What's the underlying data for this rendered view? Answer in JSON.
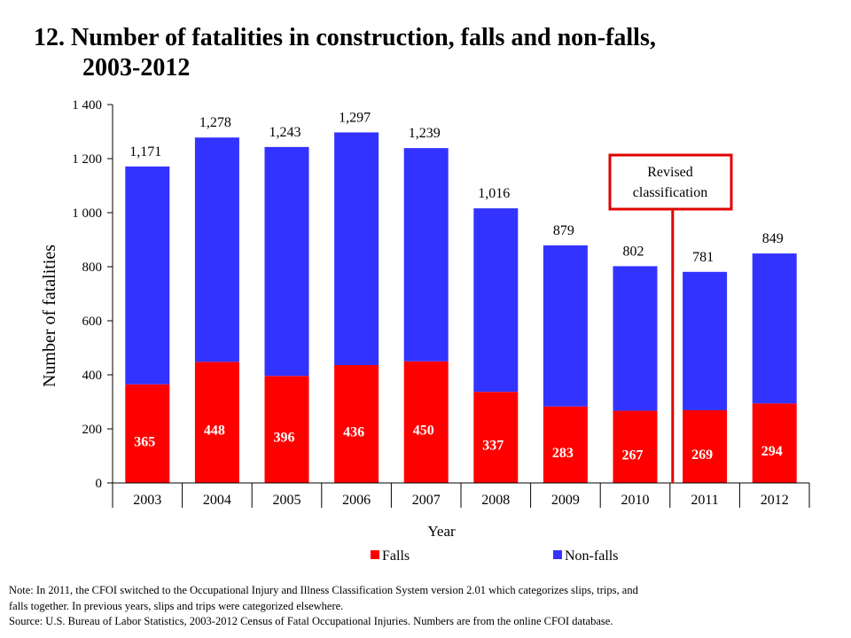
{
  "title": {
    "line1": "12. Number of fatalities in construction, falls and non-falls,",
    "line2": "2003-2012"
  },
  "chart_data": {
    "type": "bar",
    "stacked": true,
    "categories": [
      "2003",
      "2004",
      "2005",
      "2006",
      "2007",
      "2008",
      "2009",
      "2010",
      "2011",
      "2012"
    ],
    "series": [
      {
        "name": "Falls",
        "color": "#ff0000",
        "values": [
          365,
          448,
          396,
          436,
          450,
          337,
          283,
          267,
          269,
          294
        ]
      },
      {
        "name": "Non-falls",
        "color": "#3333ff",
        "values": [
          806,
          830,
          847,
          861,
          789,
          679,
          596,
          535,
          512,
          555
        ]
      }
    ],
    "totals": [
      1171,
      1278,
      1243,
      1297,
      1239,
      1016,
      879,
      802,
      781,
      849
    ],
    "total_labels": [
      "1,171",
      "1,278",
      "1,243",
      "1,297",
      "1,239",
      "1,016",
      "879",
      "802",
      "781",
      "849"
    ],
    "ylim": [
      0,
      1400
    ],
    "yticks": [
      0,
      200,
      400,
      600,
      800,
      1000,
      1200,
      1400
    ],
    "ytick_labels": [
      "0",
      "200",
      "400",
      "600",
      "800",
      "1 000",
      "1 200",
      "1 400"
    ],
    "xlabel": "Year",
    "ylabel": "Number of fatalities",
    "legend_position": "bottom",
    "grid": false,
    "annotation": {
      "line1": "Revised",
      "line2": "classification",
      "between": [
        "2010",
        "2011"
      ],
      "color": "#e00000"
    }
  },
  "notes": {
    "line1": "Note: In 2011, the CFOI switched to the Occupational Injury and Illness Classification System version 2.01 which categorizes slips, trips, and",
    "line2": "falls together. In previous years, slips and trips were categorized elsewhere.",
    "line3": "Source: U.S. Bureau of Labor Statistics, 2003-2012 Census of Fatal Occupational Injuries. Numbers are from the online CFOI database."
  }
}
